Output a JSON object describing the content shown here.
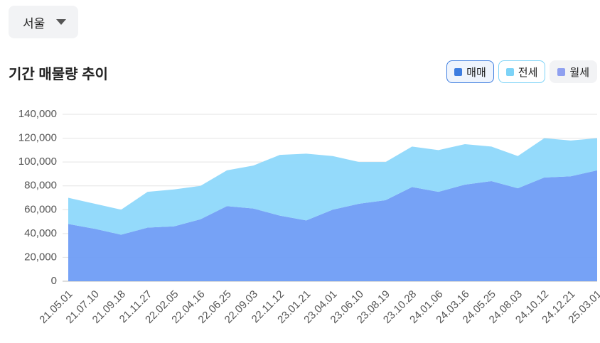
{
  "region": "서울",
  "chart_data": {
    "type": "stacked_area",
    "title": "기간 매물량 추이",
    "categories": [
      "21.05.01",
      "21.07.10",
      "21.09.18",
      "21.11.27",
      "22.02.05",
      "22.04.16",
      "22.06.25",
      "22.09.03",
      "22.11.12",
      "23.01.21",
      "23.04.01",
      "23.06.10",
      "23.08.19",
      "23.10.28",
      "24.01.06",
      "24.03.16",
      "24.05.25",
      "24.08.03",
      "24.10.12",
      "24.12.21",
      "25.03.01"
    ],
    "series": [
      {
        "name": "매매",
        "color": "#6f9df6",
        "marker_color": "#3d7de0",
        "visible": true,
        "values": [
          48000,
          44000,
          39000,
          45000,
          46000,
          52000,
          63000,
          61000,
          55000,
          51000,
          60000,
          65000,
          68000,
          79000,
          75000,
          81000,
          84000,
          78000,
          87000,
          88000,
          93000
        ]
      },
      {
        "name": "전세",
        "color": "#8ed8fb",
        "marker_color": "#7dd3f7",
        "visible": true,
        "values": [
          22000,
          21000,
          21000,
          30000,
          31000,
          28000,
          30000,
          36000,
          51000,
          56000,
          45000,
          35000,
          32000,
          34000,
          35000,
          34000,
          29000,
          27000,
          33000,
          30000,
          27000
        ]
      },
      {
        "name": "월세",
        "color": "#9aa9f0",
        "marker_color": "#8fa0f0",
        "visible": false
      }
    ],
    "ylim": [
      0,
      140000
    ],
    "yticks": [
      0,
      {
        "value": 20000,
        "label": "20,000"
      },
      {
        "value": 40000,
        "label": "40,000"
      },
      {
        "value": 60000,
        "label": "60,000"
      },
      {
        "value": 80000,
        "label": "80,000"
      },
      {
        "value": 100000,
        "label": "100,000"
      },
      {
        "value": 120000,
        "label": "120,000"
      },
      {
        "value": 140000,
        "label": "140,000"
      }
    ],
    "grid": true
  }
}
